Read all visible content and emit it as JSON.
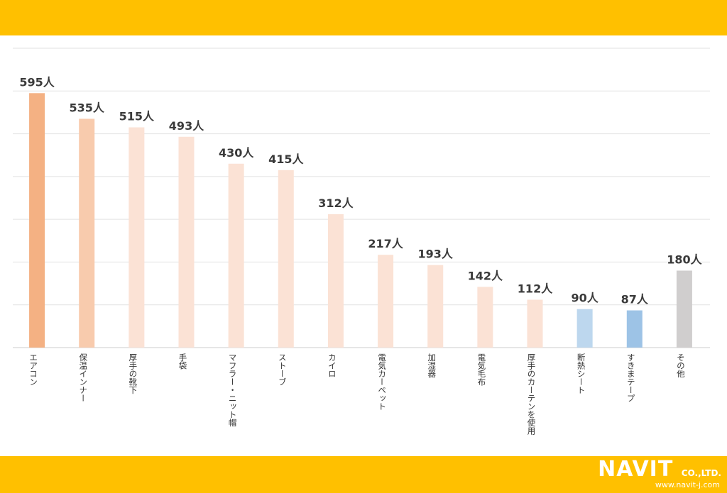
{
  "chart_data": {
    "type": "bar",
    "categories": [
      "エアコン",
      "保温インナー",
      "厚手の靴下",
      "手袋",
      "マフラー・ニット帽",
      "ストーブ",
      "カイロ",
      "電気カーペット",
      "加湿器",
      "電気毛布",
      "厚手のカーテンを使用",
      "断熱シート",
      "すきまテープ",
      "その他"
    ],
    "values": [
      595,
      535,
      515,
      493,
      430,
      415,
      312,
      217,
      193,
      142,
      112,
      90,
      87,
      180
    ],
    "labels": [
      "595人",
      "535人",
      "515人",
      "493人",
      "430人",
      "415人",
      "312人",
      "217人",
      "193人",
      "142人",
      "112人",
      "90人",
      "87人",
      "180人"
    ],
    "colors": [
      "#F4B183",
      "#F8CBAD",
      "#FBE2D5",
      "#FBE2D5",
      "#FBE2D5",
      "#FBE2D5",
      "#FBE2D5",
      "#FBE2D5",
      "#FBE2D5",
      "#FBE2D5",
      "#FBE2D5",
      "#BDD7EE",
      "#9DC3E6",
      "#D0CECE"
    ],
    "ylim": [
      0,
      700
    ],
    "grid": true,
    "legend": "none"
  },
  "brand": {
    "logo_text": "NAVIT",
    "logo_suffix": "CO.,LTD.",
    "url": "www.navit-j.com",
    "band_color": "#FFC000"
  }
}
